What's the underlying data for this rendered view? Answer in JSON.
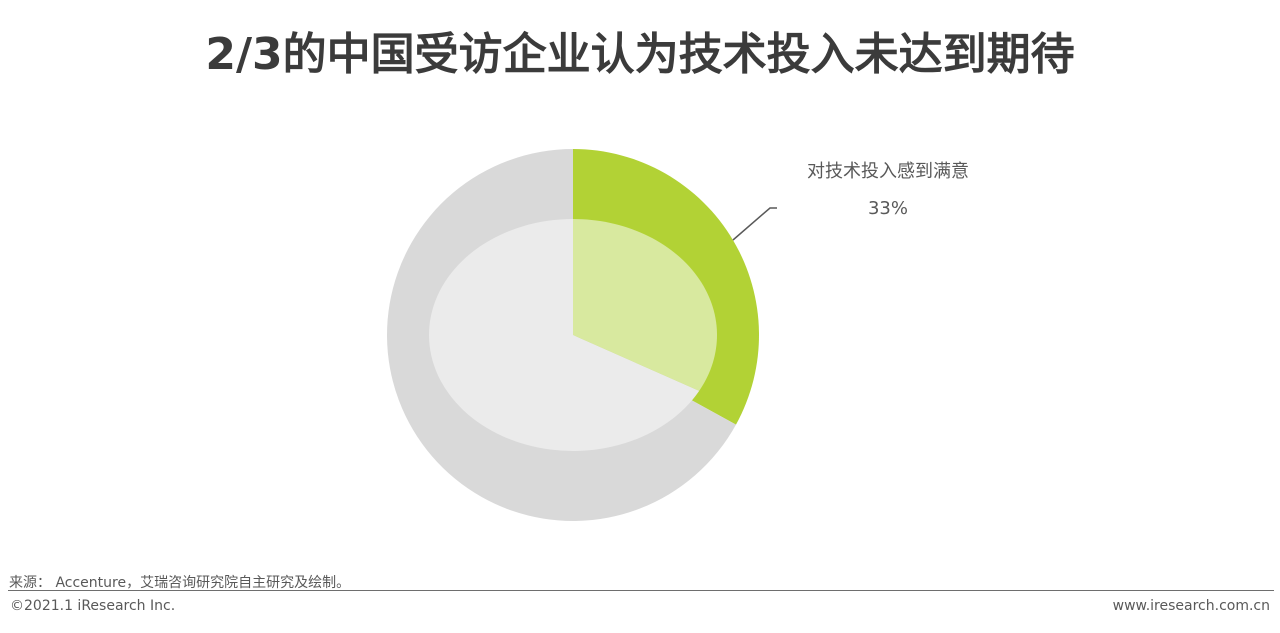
{
  "header": {
    "title": "2/3的中国受访企业认为技术投入未达到期待"
  },
  "chart_data": {
    "type": "pie",
    "slices": [
      {
        "label": "对技术投入感到满意",
        "value": 33,
        "value_label": "33%",
        "color": "#b2d235",
        "inner_color": "#d8e99f"
      },
      {
        "label": "",
        "value": 67,
        "value_label": "",
        "color": "#d9d9d9",
        "inner_color": "#ebebeb"
      }
    ],
    "style": "pie with lighter inner ring"
  },
  "footer": {
    "source": "来源： Accenture，艾瑞咨询研究院自主研究及绘制。",
    "copyright": "©2021.1 iResearch Inc.",
    "website": "www.iresearch.com.cn"
  }
}
